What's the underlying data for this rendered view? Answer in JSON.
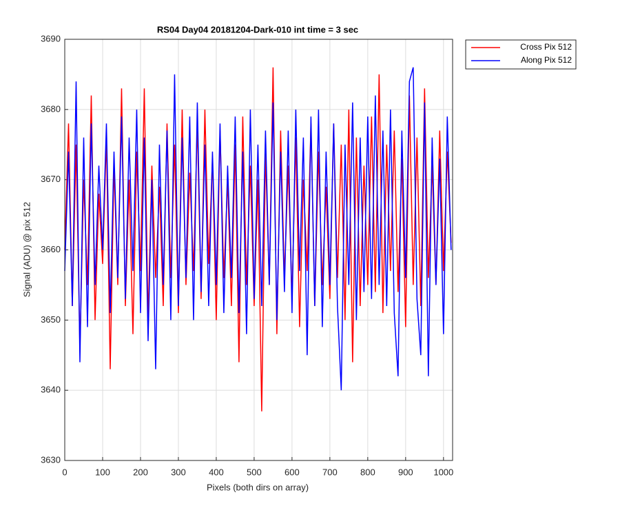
{
  "chart_data": {
    "type": "line",
    "title": "RS04 Day04 20181204-Dark-010 int time = 3 sec",
    "xlabel": "Pixels (both dirs on array)",
    "ylabel": "Signal (ADU) @ pix 512",
    "x": [
      0,
      10,
      20,
      30,
      40,
      50,
      60,
      70,
      80,
      90,
      100,
      110,
      120,
      130,
      140,
      150,
      160,
      170,
      180,
      190,
      200,
      210,
      220,
      230,
      240,
      250,
      260,
      270,
      280,
      290,
      300,
      310,
      320,
      330,
      340,
      350,
      360,
      370,
      380,
      390,
      400,
      410,
      420,
      430,
      440,
      450,
      460,
      470,
      480,
      490,
      500,
      510,
      520,
      530,
      540,
      550,
      560,
      570,
      580,
      590,
      600,
      610,
      620,
      630,
      640,
      650,
      660,
      670,
      680,
      690,
      700,
      710,
      720,
      730,
      740,
      750,
      760,
      770,
      780,
      790,
      800,
      810,
      820,
      830,
      840,
      850,
      860,
      870,
      880,
      890,
      900,
      910,
      920,
      930,
      940,
      950,
      960,
      970,
      980,
      990,
      1000,
      1010,
      1020
    ],
    "series": [
      {
        "name": "Cross Pix 512",
        "color": "#ff0000",
        "values": [
          3660,
          3678,
          3652,
          3675,
          3646,
          3670,
          3655,
          3682,
          3650,
          3668,
          3658,
          3676,
          3643,
          3672,
          3655,
          3683,
          3652,
          3670,
          3648,
          3674,
          3657,
          3683,
          3650,
          3672,
          3656,
          3669,
          3652,
          3678,
          3656,
          3675,
          3651,
          3680,
          3655,
          3671,
          3657,
          3678,
          3653,
          3680,
          3658,
          3673,
          3650,
          3677,
          3656,
          3670,
          3652,
          3675,
          3644,
          3679,
          3655,
          3672,
          3652,
          3670,
          3637,
          3674,
          3655,
          3686,
          3648,
          3677,
          3656,
          3672,
          3653,
          3676,
          3649,
          3670,
          3657,
          3678,
          3652,
          3674,
          3655,
          3669,
          3653,
          3678,
          3656,
          3675,
          3650,
          3680,
          3644,
          3676,
          3652,
          3672,
          3655,
          3679,
          3654,
          3685,
          3651,
          3675,
          3657,
          3677,
          3654,
          3673,
          3649,
          3682,
          3655,
          3676,
          3652,
          3683,
          3656,
          3672,
          3655,
          3677,
          3657,
          3674,
          3661
        ]
      },
      {
        "name": "Along Pix 512",
        "color": "#0000ff",
        "values": [
          3657,
          3674,
          3652,
          3684,
          3644,
          3676,
          3649,
          3678,
          3655,
          3672,
          3660,
          3678,
          3651,
          3674,
          3656,
          3679,
          3653,
          3676,
          3657,
          3680,
          3651,
          3676,
          3647,
          3670,
          3643,
          3675,
          3655,
          3677,
          3650,
          3685,
          3652,
          3676,
          3656,
          3679,
          3650,
          3681,
          3654,
          3675,
          3652,
          3674,
          3655,
          3678,
          3651,
          3672,
          3656,
          3679,
          3651,
          3674,
          3648,
          3680,
          3653,
          3675,
          3652,
          3677,
          3655,
          3681,
          3650,
          3674,
          3654,
          3677,
          3651,
          3680,
          3657,
          3676,
          3645,
          3679,
          3652,
          3680,
          3649,
          3674,
          3655,
          3678,
          3652,
          3640,
          3675,
          3655,
          3681,
          3650,
          3676,
          3654,
          3679,
          3653,
          3682,
          3655,
          3677,
          3652,
          3680,
          3651,
          3642,
          3677,
          3656,
          3684,
          3686,
          3653,
          3645,
          3681,
          3642,
          3676,
          3655,
          3673,
          3648,
          3679,
          3660
        ]
      }
    ],
    "xlim": [
      0,
      1024
    ],
    "xticks": [
      0,
      100,
      200,
      300,
      400,
      500,
      600,
      700,
      800,
      900,
      1000
    ],
    "ylim": [
      3630,
      3690
    ],
    "yticks": [
      3630,
      3640,
      3650,
      3660,
      3670,
      3680,
      3690
    ],
    "grid": true,
    "legend": "outside top right"
  }
}
